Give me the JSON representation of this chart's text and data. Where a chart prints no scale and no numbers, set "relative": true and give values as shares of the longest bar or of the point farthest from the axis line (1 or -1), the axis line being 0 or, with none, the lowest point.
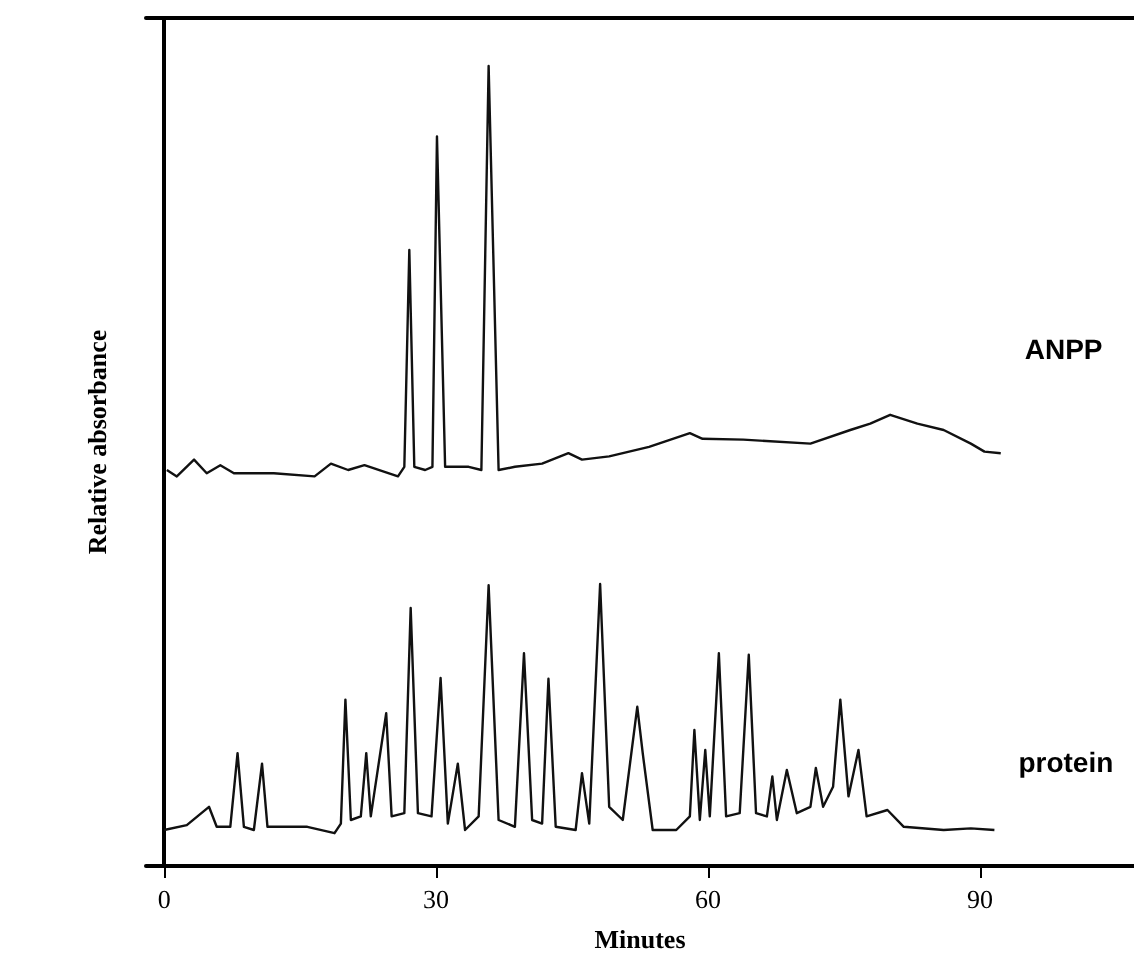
{
  "chart_data": {
    "type": "line",
    "relative": true,
    "xlabel": "Minutes",
    "ylabel": "Relative absorbance",
    "xlim": [
      -2,
      107
    ],
    "xticks": [
      0,
      30,
      60,
      90
    ],
    "legend": false,
    "marker": "none",
    "line_style": "solid",
    "series": [
      {
        "name": "ANPP",
        "color": "#111111",
        "x": [
          0.3,
          1.4,
          3.3,
          4.7,
          6.2,
          7.7,
          12.1,
          16.6,
          18.4,
          20.3,
          22.1,
          25.8,
          26.5,
          27.05,
          27.6,
          28.8,
          29.6,
          30.1,
          31.0,
          33.6,
          35.0,
          35.8,
          36.9,
          38.7,
          41.7,
          44.6,
          46.1,
          49.1,
          53.5,
          58.0,
          59.4,
          63.9,
          71.3,
          75.7,
          77.9,
          80.1,
          83.1,
          86.0,
          89.0,
          90.5,
          92.3
        ],
        "values": [
          0.495,
          0.487,
          0.508,
          0.491,
          0.501,
          0.491,
          0.491,
          0.487,
          0.503,
          0.495,
          0.501,
          0.487,
          0.499,
          0.77,
          0.499,
          0.495,
          0.499,
          0.912,
          0.499,
          0.499,
          0.495,
          1.0,
          0.495,
          0.499,
          0.503,
          0.516,
          0.508,
          0.512,
          0.524,
          0.541,
          0.534,
          0.533,
          0.528,
          0.545,
          0.553,
          0.564,
          0.553,
          0.545,
          0.528,
          0.518,
          0.516
        ]
      },
      {
        "name": "protein",
        "color": "#111111",
        "x": [
          0,
          2.5,
          4.95,
          5.8,
          7.3,
          8.1,
          8.8,
          9.9,
          10.8,
          11.4,
          15.8,
          18.8,
          19.5,
          20.0,
          20.6,
          21.7,
          22.3,
          22.8,
          24.5,
          25.1,
          26.5,
          27.2,
          28.0,
          29.5,
          30.5,
          31.3,
          32.4,
          33.2,
          34.7,
          35.8,
          36.9,
          38.7,
          39.7,
          40.6,
          41.7,
          42.4,
          43.2,
          45.4,
          46.1,
          46.9,
          48.1,
          49.1,
          50.6,
          52.2,
          52.8,
          53.9,
          56.5,
          58.0,
          58.5,
          59.1,
          59.7,
          60.2,
          61.2,
          62.0,
          63.5,
          64.5,
          65.3,
          66.5,
          67.1,
          67.6,
          68.7,
          69.8,
          71.3,
          71.9,
          72.7,
          73.8,
          74.6,
          75.5,
          76.6,
          77.5,
          79.8,
          81.6,
          86.0,
          89.0,
          91.6
        ],
        "values": [
          0.045,
          0.051,
          0.074,
          0.049,
          0.049,
          0.141,
          0.049,
          0.045,
          0.128,
          0.049,
          0.049,
          0.041,
          0.053,
          0.208,
          0.0575,
          0.062,
          0.141,
          0.062,
          0.191,
          0.062,
          0.066,
          0.3225,
          0.066,
          0.062,
          0.235,
          0.053,
          0.128,
          0.045,
          0.062,
          0.351,
          0.0575,
          0.049,
          0.266,
          0.0575,
          0.053,
          0.234,
          0.049,
          0.045,
          0.116,
          0.053,
          0.3525,
          0.074,
          0.0575,
          0.199,
          0.141,
          0.045,
          0.045,
          0.062,
          0.17,
          0.0575,
          0.145,
          0.062,
          0.266,
          0.062,
          0.066,
          0.264,
          0.066,
          0.062,
          0.112,
          0.0575,
          0.12,
          0.066,
          0.074,
          0.1225,
          0.074,
          0.099,
          0.208,
          0.087,
          0.145,
          0.062,
          0.07,
          0.049,
          0.045,
          0.047,
          0.045
        ]
      }
    ]
  }
}
